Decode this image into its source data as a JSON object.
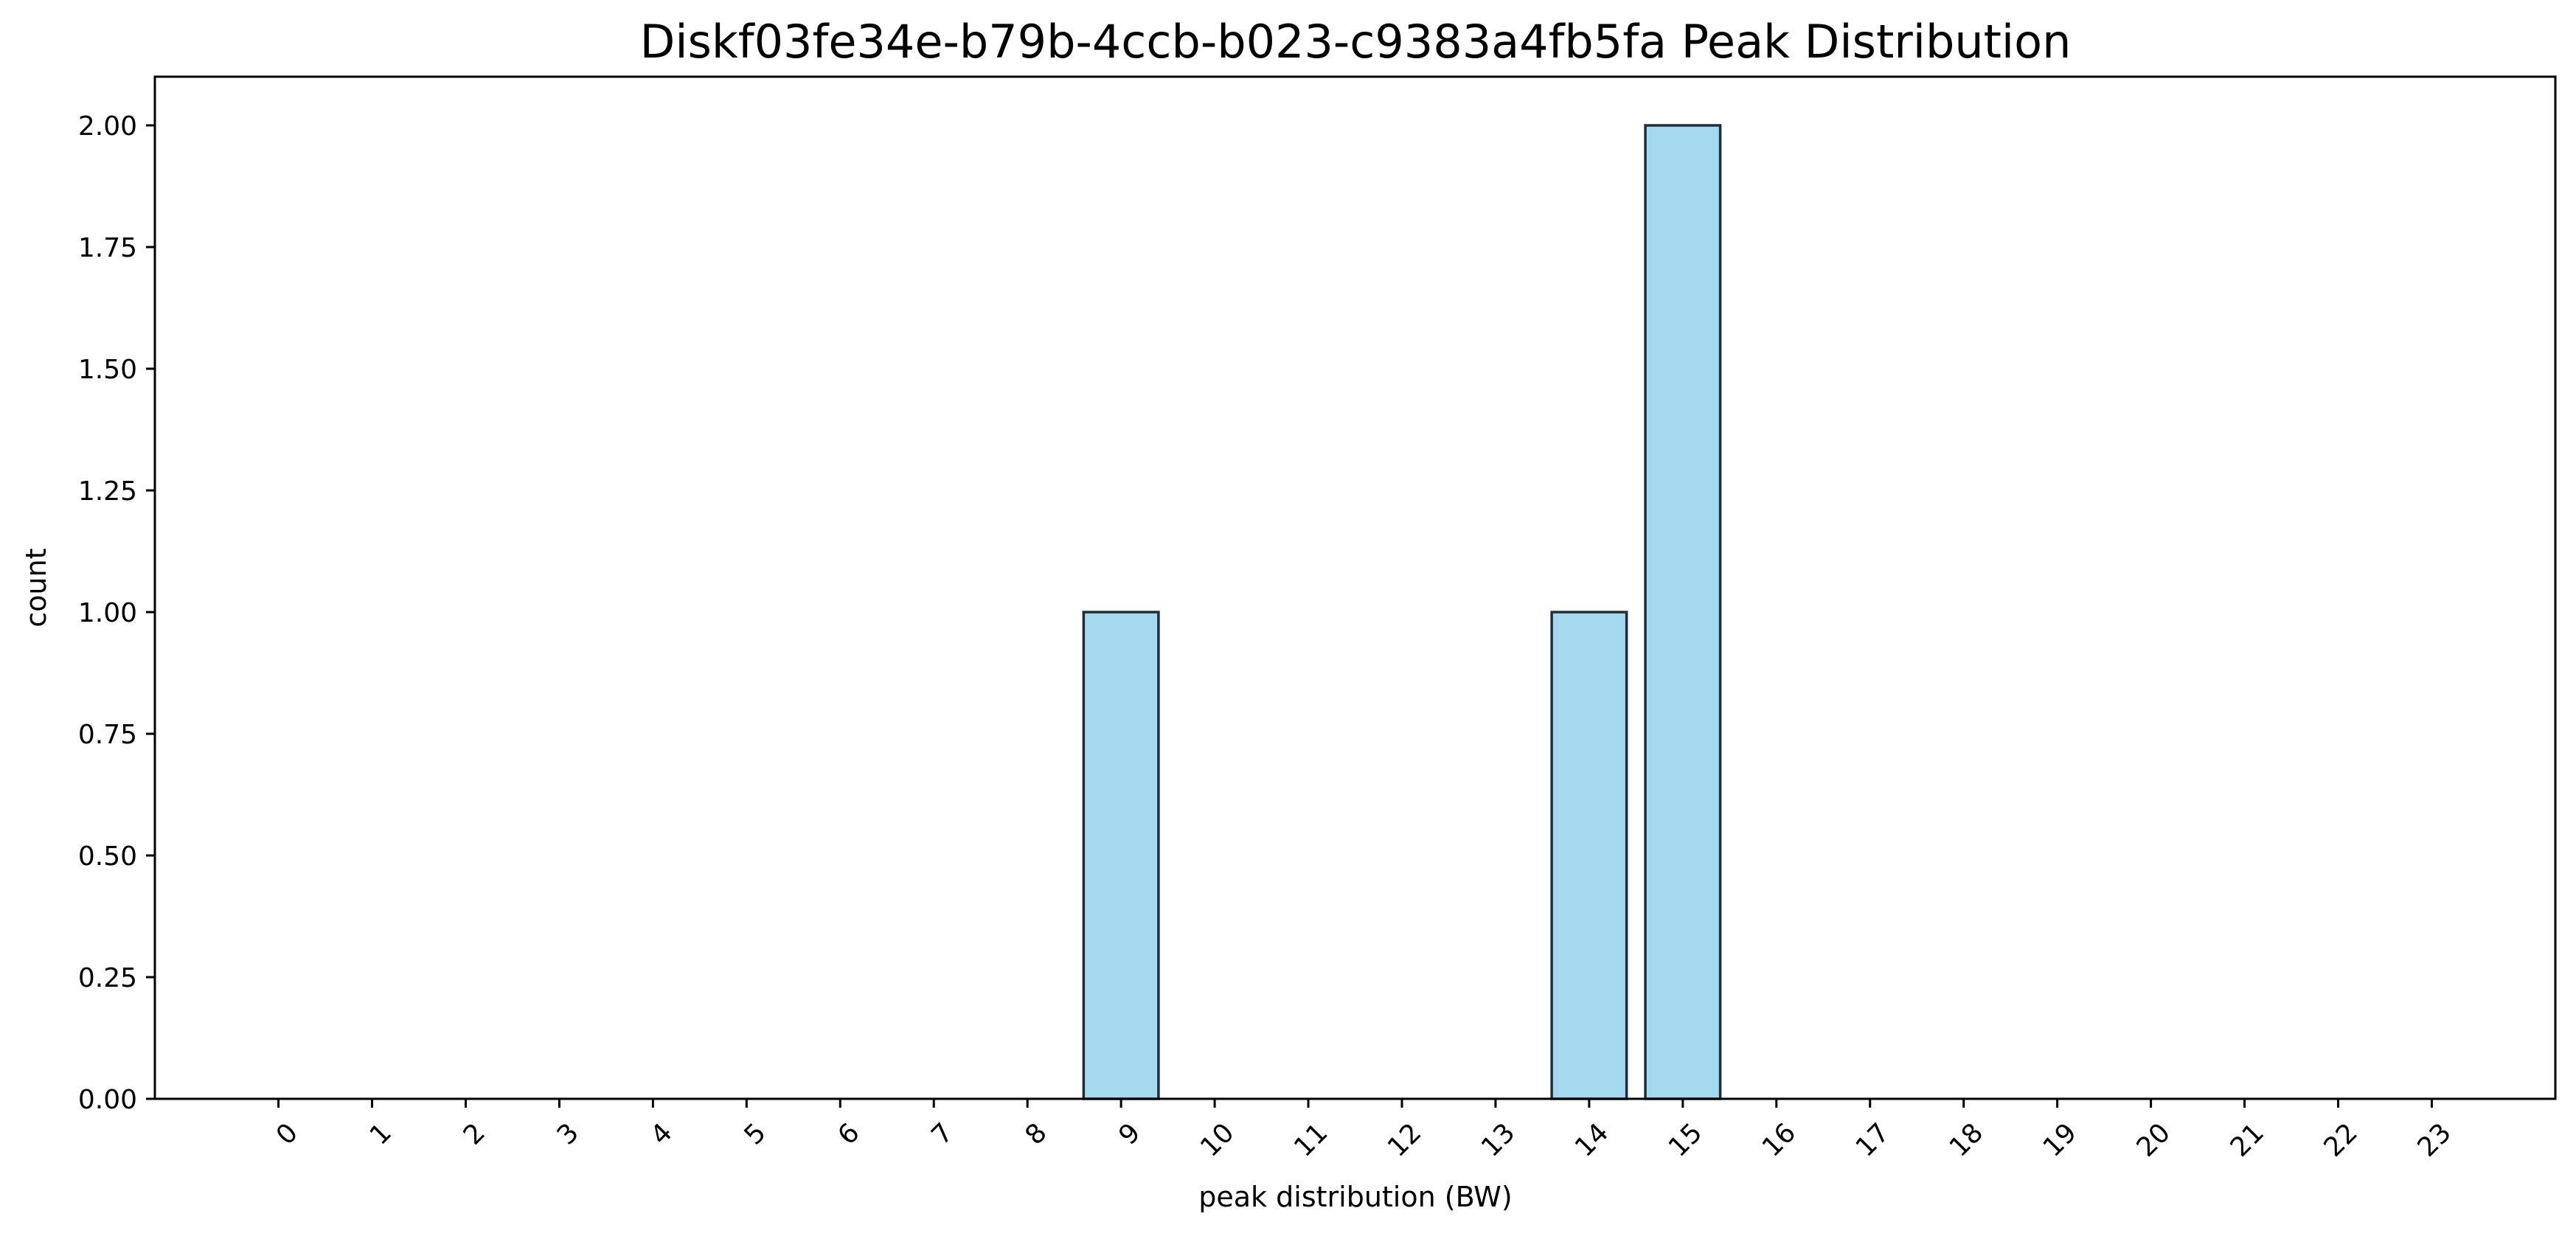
{
  "chart_data": {
    "type": "bar",
    "title": "Diskf03fe34e-b79b-4ccb-b023-c9383a4fb5fa Peak Distribution",
    "xlabel": "peak distribution (BW)",
    "ylabel": "count",
    "categories": [
      "0",
      "1",
      "2",
      "3",
      "4",
      "5",
      "6",
      "7",
      "8",
      "9",
      "10",
      "11",
      "12",
      "13",
      "14",
      "15",
      "16",
      "17",
      "18",
      "19",
      "20",
      "21",
      "22",
      "23"
    ],
    "values": [
      0,
      0,
      0,
      0,
      0,
      0,
      0,
      0,
      0,
      1,
      0,
      0,
      0,
      0,
      1,
      2,
      0,
      0,
      0,
      0,
      0,
      0,
      0,
      0
    ],
    "ylim": [
      0,
      2.1
    ],
    "yticks": [
      "0.00",
      "0.25",
      "0.50",
      "0.75",
      "1.00",
      "1.25",
      "1.50",
      "1.75",
      "2.00"
    ],
    "bar_color": "#a3d8ee",
    "edge_color": "#1f2f3a",
    "grid": false,
    "legend": "none"
  }
}
